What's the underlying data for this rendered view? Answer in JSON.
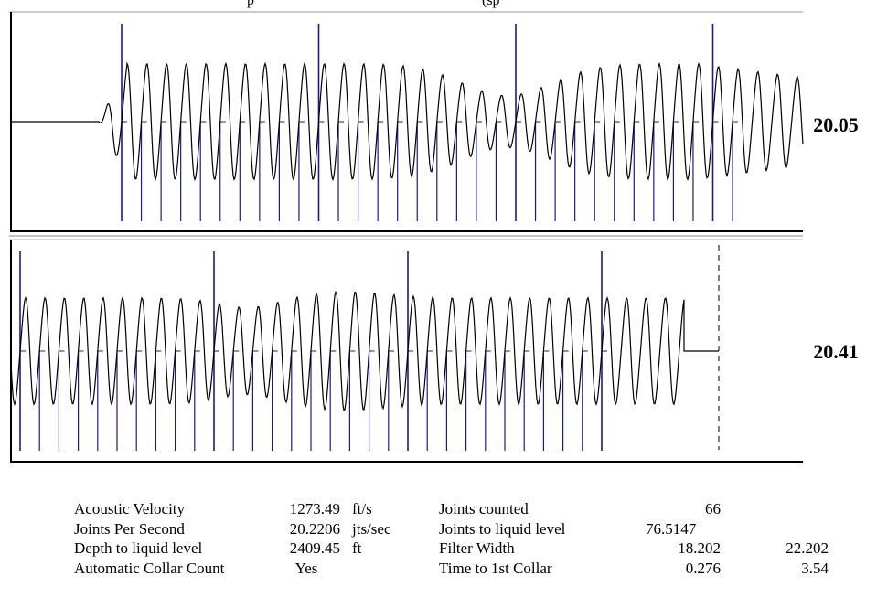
{
  "header": {
    "left_text": "p",
    "right_text": "(sp"
  },
  "chart_data": [
    {
      "type": "line",
      "panel": 1,
      "side_value": "20.05",
      "collar_count": 32,
      "major_collar_every": 10,
      "waveform_start": "flat then oscillating",
      "amplitude_profile": "strong near start, dips mid-panel, strong again then tapering",
      "grid": false
    },
    {
      "type": "line",
      "panel": 2,
      "side_value": "20.41",
      "collar_count": 31,
      "major_collar_every": 10,
      "waveform_end": "oscillating then flat",
      "liquid_level_marker": "dashed vertical line",
      "grid": false
    }
  ],
  "stats": {
    "rows": [
      {
        "label": "Acoustic Velocity",
        "value": "1273.49",
        "unit": "ft/s",
        "label2": "Joints counted",
        "value2": "66",
        "value3": ""
      },
      {
        "label": "Joints Per Second",
        "value": "20.2206",
        "unit": "jts/sec",
        "label2": "Joints to liquid level",
        "value2": "76.5147",
        "value3": ""
      },
      {
        "label": "Depth to liquid level",
        "value": "2409.45",
        "unit": "ft",
        "label2": "Filter Width",
        "value2": "18.202",
        "value3": "22.202"
      },
      {
        "label": "Automatic Collar Count",
        "value": "Yes",
        "unit": "",
        "label2": "Time to 1st Collar",
        "value2": "0.276",
        "value3": "3.54"
      }
    ]
  },
  "colors": {
    "waveform": "#000000",
    "collar_markers": "#1a1a8c",
    "frame": "#000000",
    "divider": "#888888"
  }
}
